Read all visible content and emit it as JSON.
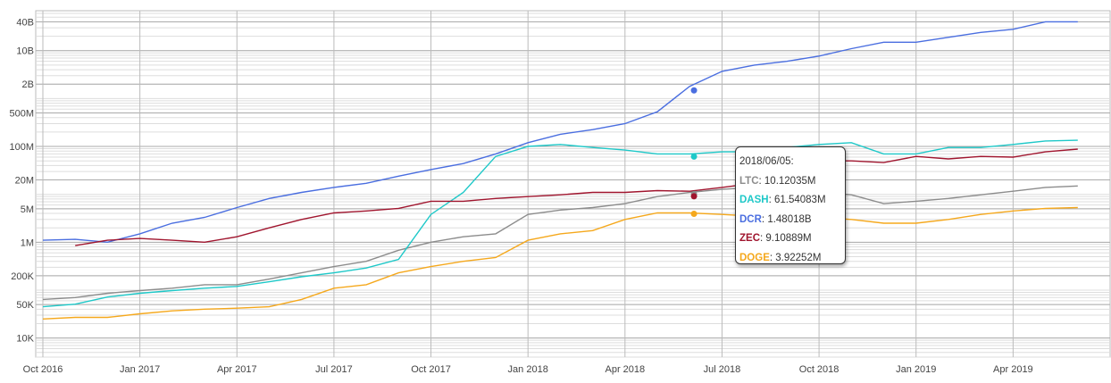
{
  "chart_data": {
    "type": "line",
    "log_scale": true,
    "grid": true,
    "xlim": [
      "2016-10",
      "2019-07"
    ],
    "ylim": [
      4000,
      60000000000
    ],
    "xticks": [
      {
        "value": "2016-10",
        "label": "Oct 2016"
      },
      {
        "value": "2017-01",
        "label": "Jan 2017"
      },
      {
        "value": "2017-04",
        "label": "Apr 2017"
      },
      {
        "value": "2017-07",
        "label": "Jul 2017"
      },
      {
        "value": "2017-10",
        "label": "Oct 2017"
      },
      {
        "value": "2018-01",
        "label": "Jan 2018"
      },
      {
        "value": "2018-04",
        "label": "Apr 2018"
      },
      {
        "value": "2018-07",
        "label": "Jul 2018"
      },
      {
        "value": "2018-10",
        "label": "Oct 2018"
      },
      {
        "value": "2019-01",
        "label": "Jan 2019"
      },
      {
        "value": "2019-04",
        "label": "Apr 2019"
      }
    ],
    "yticks": [
      {
        "value": 10000,
        "label": "10K"
      },
      {
        "value": 50000,
        "label": "50K"
      },
      {
        "value": 200000,
        "label": "200K"
      },
      {
        "value": 1000000,
        "label": "1M"
      },
      {
        "value": 5000000,
        "label": "5M"
      },
      {
        "value": 20000000,
        "label": "20M"
      },
      {
        "value": 100000000,
        "label": "100M"
      },
      {
        "value": 500000000,
        "label": "500M"
      },
      {
        "value": 2000000000,
        "label": "2B"
      },
      {
        "value": 10000000000,
        "label": "10B"
      },
      {
        "value": 40000000000,
        "label": "40B"
      }
    ],
    "x": [
      "2016-10",
      "2016-11",
      "2016-12",
      "2017-01",
      "2017-02",
      "2017-03",
      "2017-04",
      "2017-05",
      "2017-06",
      "2017-07",
      "2017-08",
      "2017-09",
      "2017-10",
      "2017-11",
      "2017-12",
      "2018-01",
      "2018-02",
      "2018-03",
      "2018-04",
      "2018-05",
      "2018-06",
      "2018-07",
      "2018-08",
      "2018-09",
      "2018-10",
      "2018-11",
      "2018-12",
      "2019-01",
      "2019-02",
      "2019-03",
      "2019-04",
      "2019-05",
      "2019-06"
    ],
    "series": [
      {
        "name": "LTC",
        "color": "#8c8c8c",
        "values": [
          64000,
          70000,
          86000,
          98000,
          110000,
          130000,
          130000,
          170000,
          230000,
          310000,
          400000,
          680000,
          1000000,
          1300000,
          1500000,
          3800000,
          4700000,
          5300000,
          6400000,
          9000000,
          11000000,
          12700000,
          14000000,
          12700000,
          11000000,
          9800000,
          6400000,
          7200000,
          8200000,
          9800000,
          11600000,
          14000000,
          15000000
        ]
      },
      {
        "name": "DASH",
        "color": "#1ec8c8",
        "values": [
          45000,
          51000,
          72000,
          86000,
          98000,
          110000,
          120000,
          150000,
          190000,
          230000,
          290000,
          440000,
          3800000,
          11000000,
          62000000,
          100000000,
          110000000,
          95000000,
          84000000,
          70000000,
          70000000,
          77000000,
          77000000,
          95000000,
          110000000,
          120000000,
          70000000,
          70000000,
          95000000,
          95000000,
          110000000,
          130000000,
          135000000
        ]
      },
      {
        "name": "DCR",
        "color": "#4a6ee0",
        "values": [
          1100000,
          1150000,
          1000000,
          1500000,
          2500000,
          3300000,
          5300000,
          8200000,
          11000000,
          14000000,
          17000000,
          24000000,
          33000000,
          44000000,
          70000000,
          120000000,
          180000000,
          225000000,
          300000000,
          530000000,
          1800000000,
          3700000000,
          5000000000,
          6000000000,
          7700000000,
          11000000000,
          15000000000,
          15000000000,
          19000000000,
          24000000000,
          28000000000,
          40000000000,
          40000000000
        ]
      },
      {
        "name": "ZEC",
        "color": "#a0152e",
        "values": [
          null,
          850000,
          1100000,
          1200000,
          1100000,
          1000000,
          1300000,
          2000000,
          3000000,
          4100000,
          4500000,
          5100000,
          7200000,
          7200000,
          8200000,
          9000000,
          9800000,
          11000000,
          11000000,
          12000000,
          11600000,
          14000000,
          17000000,
          33000000,
          50000000,
          50000000,
          46000000,
          62000000,
          55000000,
          62000000,
          60000000,
          77000000,
          88000000
        ]
      },
      {
        "name": "DOGE",
        "color": "#f5a81c",
        "values": [
          25000,
          27000,
          27000,
          32000,
          37000,
          40000,
          42000,
          45000,
          64000,
          110000,
          130000,
          230000,
          310000,
          400000,
          480000,
          1100000,
          1500000,
          1750000,
          3000000,
          4100000,
          4100000,
          3800000,
          3500000,
          3000000,
          3300000,
          3000000,
          2500000,
          2500000,
          3000000,
          3800000,
          4500000,
          5100000,
          5300000
        ]
      }
    ],
    "tooltip": {
      "date": "2018/06/05:",
      "x": "2018-06-05",
      "values": [
        10120350,
        61540830,
        1480180000,
        9108890,
        3922520
      ],
      "value_labels": [
        "10.12035M",
        "61.54083M",
        "1.48018B",
        "9.10889M",
        "3.92252M"
      ]
    }
  }
}
